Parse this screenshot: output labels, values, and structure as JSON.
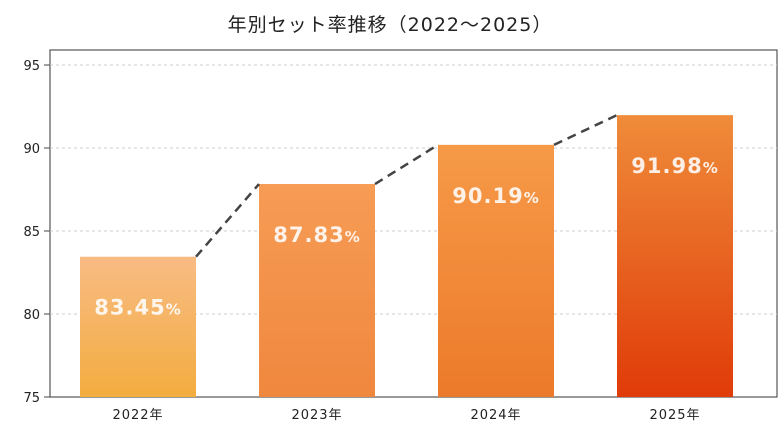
{
  "chart_data": {
    "type": "bar",
    "title": "年別セット率推移（2022〜2025）",
    "categories": [
      "2022年",
      "2023年",
      "2024年",
      "2025年"
    ],
    "values": [
      83.45,
      87.83,
      90.19,
      91.98
    ],
    "data_labels": [
      "83.45%",
      "87.83%",
      "90.19%",
      "91.98%"
    ],
    "ylim": [
      75,
      95
    ],
    "yticks": [
      75,
      80,
      85,
      90,
      95
    ],
    "xlabel": "",
    "ylabel": "",
    "grid": "horizontal dashed",
    "trend_line": "dashed, connecting bar tops",
    "colors": [
      [
        "#f8bb84",
        "#f3ad3f"
      ],
      [
        "#f69c55",
        "#f0873e"
      ],
      [
        "#f69a48",
        "#ec7a2b"
      ],
      [
        "#ef8c3a",
        "#e03b08"
      ]
    ]
  }
}
